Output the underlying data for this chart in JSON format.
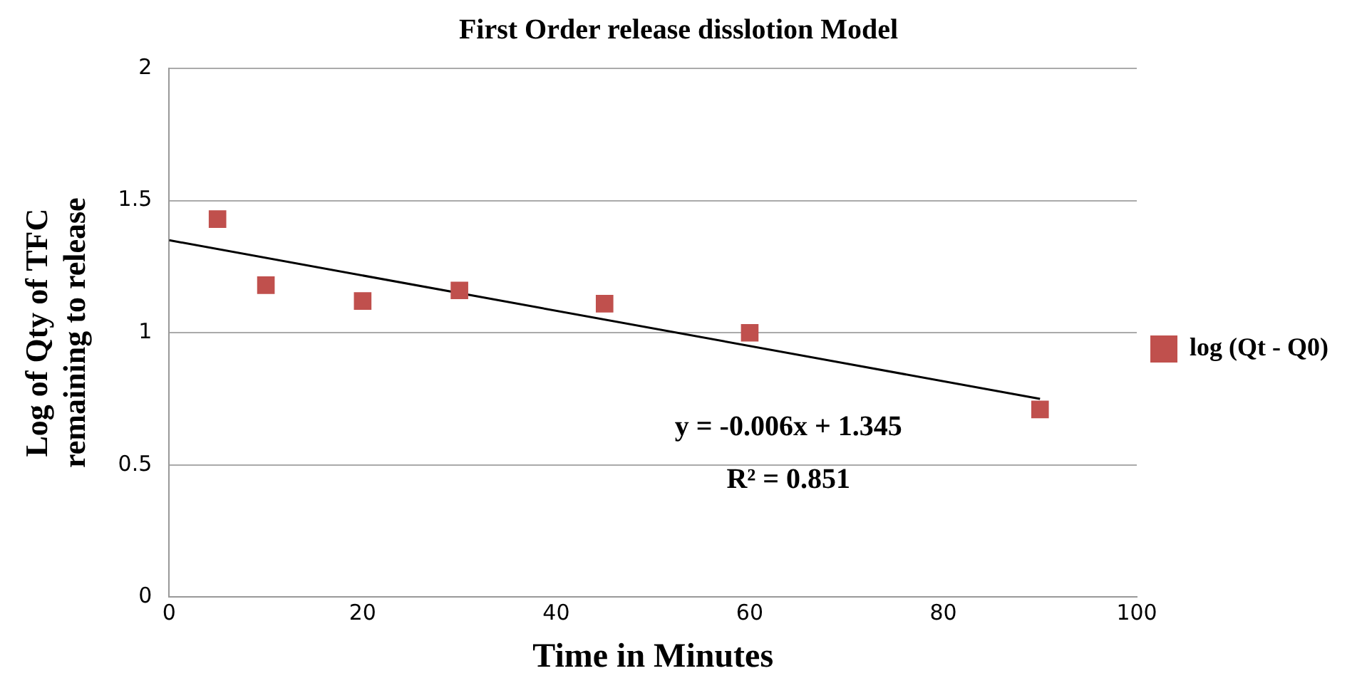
{
  "chart_data": {
    "type": "scatter",
    "title": "First Order release disslotion Model",
    "xlabel": "Time in Minutes",
    "ylabel": "Log of Qty of TFC remaining to release",
    "series": [
      {
        "name": "log (Qt - Q0)",
        "color": "#c0504d",
        "marker": "square",
        "x": [
          5,
          10,
          20,
          30,
          45,
          60,
          90
        ],
        "values": [
          1.43,
          1.18,
          1.12,
          1.16,
          1.11,
          1.0,
          0.71
        ]
      },
      {
        "type": "line",
        "color": "#000000",
        "marker": "none",
        "x": [
          0,
          90
        ],
        "values": [
          1.35,
          0.75
        ]
      }
    ],
    "annotations": [
      "y = -0.006x + 1.345",
      "R² = 0.851"
    ],
    "xlim": [
      0,
      100
    ],
    "xticks": [
      0,
      20,
      40,
      60,
      80,
      100
    ],
    "ylim": [
      0,
      2
    ],
    "yticks": [
      0,
      0.5,
      1,
      1.5,
      2
    ],
    "grid": "y",
    "legend": "right"
  }
}
